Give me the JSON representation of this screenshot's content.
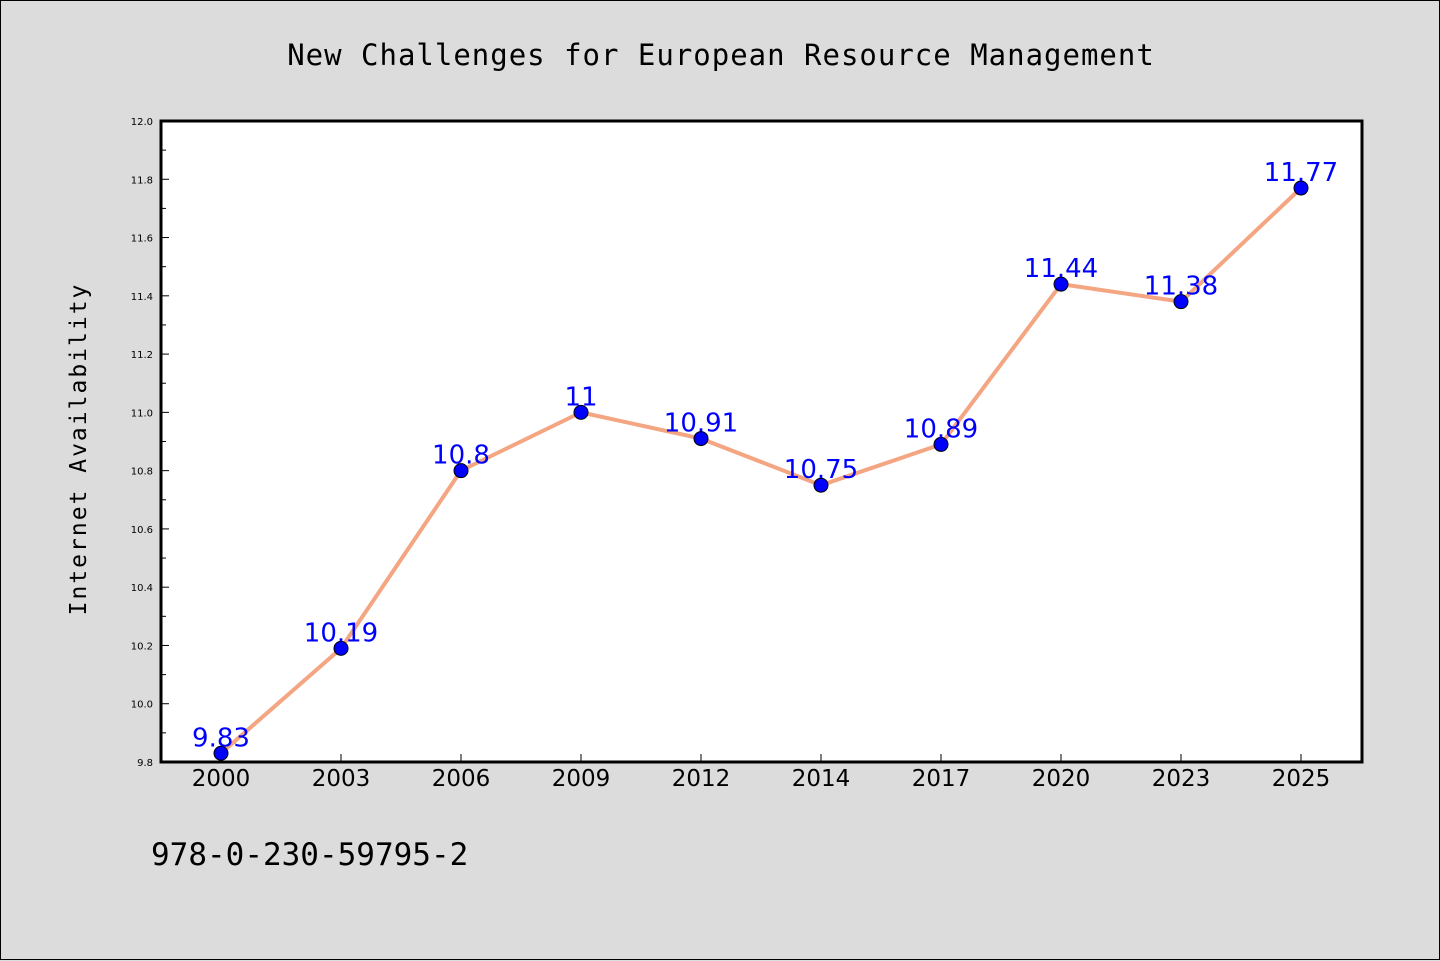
{
  "chart_data": {
    "type": "line",
    "title": "New Challenges for European Resource Management",
    "xlabel": "",
    "ylabel": "Internet Availability",
    "categories": [
      "2000",
      "2003",
      "2006",
      "2009",
      "2012",
      "2014",
      "2017",
      "2020",
      "2023",
      "2025"
    ],
    "series": [
      {
        "values": [
          9.83,
          10.19,
          10.8,
          11,
          10.91,
          10.75,
          10.89,
          11.44,
          11.38,
          11.77
        ],
        "labels": [
          "9.83",
          "10.19",
          "10.8",
          "11",
          "10.91",
          "10.75",
          "10.89",
          "11.44",
          "11.38",
          "11.77"
        ],
        "line_color": "#f4a582",
        "marker_color": "#0000ff"
      }
    ],
    "ylim": [
      9.8,
      12.0
    ],
    "yticks": [
      "9.8",
      "10.0",
      "10.2",
      "10.4",
      "10.6",
      "10.8",
      "11.0",
      "11.2",
      "11.4",
      "11.6",
      "11.8",
      "12.0"
    ],
    "grid": false,
    "legend": "none",
    "label_color": "#0000ff",
    "background": "#dcdcdc",
    "plot_background": "#ffffff"
  },
  "footer": {
    "isbn": "978-0-230-59795-2"
  }
}
